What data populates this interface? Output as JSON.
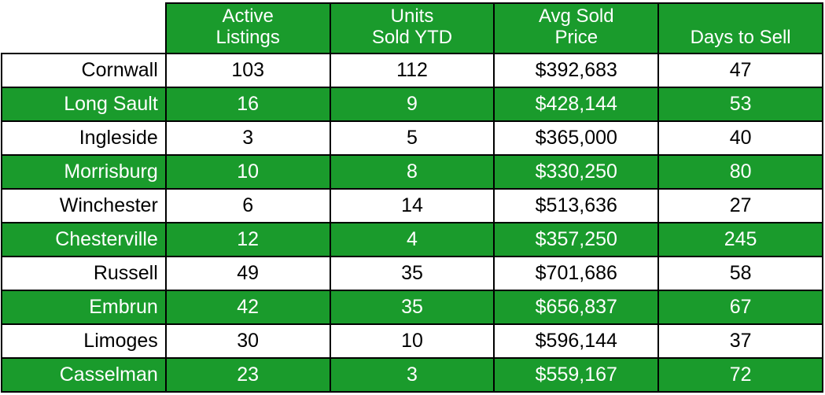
{
  "table": {
    "headers": [
      "Active\nListings",
      "Units\nSold YTD",
      "Avg Sold\nPrice",
      "Days to Sell"
    ],
    "rows": [
      {
        "label": "Cornwall",
        "cells": [
          "103",
          "112",
          "$392,683",
          "47"
        ]
      },
      {
        "label": "Long Sault",
        "cells": [
          "16",
          "9",
          "$428,144",
          "53"
        ]
      },
      {
        "label": "Ingleside",
        "cells": [
          "3",
          "5",
          "$365,000",
          "40"
        ]
      },
      {
        "label": "Morrisburg",
        "cells": [
          "10",
          "8",
          "$330,250",
          "80"
        ]
      },
      {
        "label": "Winchester",
        "cells": [
          "6",
          "14",
          "$513,636",
          "27"
        ]
      },
      {
        "label": "Chesterville",
        "cells": [
          "12",
          "4",
          "$357,250",
          "245"
        ]
      },
      {
        "label": "Russell",
        "cells": [
          "49",
          "35",
          "$701,686",
          "58"
        ]
      },
      {
        "label": "Embrun",
        "cells": [
          "42",
          "35",
          "$656,837",
          "67"
        ]
      },
      {
        "label": "Limoges",
        "cells": [
          "30",
          "10",
          "$596,144",
          "37"
        ]
      },
      {
        "label": "Casselman",
        "cells": [
          "23",
          "3",
          "$559,167",
          "72"
        ]
      }
    ]
  },
  "colors": {
    "accent_green": "#1a9b2c",
    "border": "#000000",
    "text_on_green": "#ffffff",
    "text_on_white": "#000000",
    "background": "#ffffff"
  },
  "chart_data": {
    "type": "table",
    "title": "",
    "columns": [
      "",
      "Active Listings",
      "Units Sold YTD",
      "Avg Sold Price",
      "Days to Sell"
    ],
    "rows": [
      [
        "Cornwall",
        103,
        112,
        "$392,683",
        47
      ],
      [
        "Long Sault",
        16,
        9,
        "$428,144",
        53
      ],
      [
        "Ingleside",
        3,
        5,
        "$365,000",
        40
      ],
      [
        "Morrisburg",
        10,
        8,
        "$330,250",
        80
      ],
      [
        "Winchester",
        6,
        14,
        "$513,636",
        27
      ],
      [
        "Chesterville",
        12,
        4,
        "$357,250",
        245
      ],
      [
        "Russell",
        49,
        35,
        "$701,686",
        58
      ],
      [
        "Embrun",
        42,
        35,
        "$656,837",
        67
      ],
      [
        "Limoges",
        30,
        10,
        "$596,144",
        37
      ],
      [
        "Casselman",
        23,
        3,
        "$559,167",
        72
      ]
    ],
    "layout": {
      "striped_rows": "alternating white/green starting white",
      "grid": true
    }
  }
}
